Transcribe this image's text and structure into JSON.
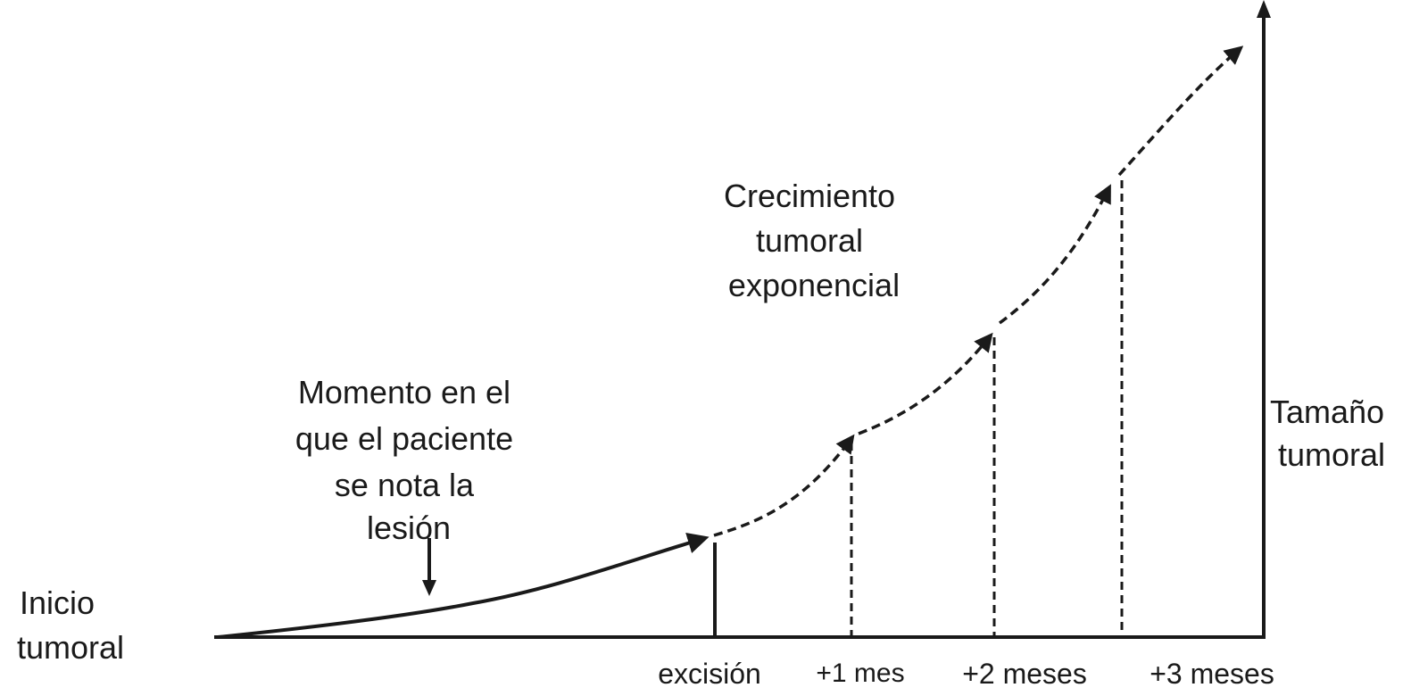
{
  "labels": {
    "inicio": [
      "Inicio",
      "tumoral"
    ],
    "momento": [
      "Momento en el",
      "que el paciente",
      "se nota la",
      "lesión"
    ],
    "crecimiento": [
      "Crecimiento",
      "tumoral",
      "exponencial"
    ],
    "tamano": [
      "Tamaño",
      "tumoral"
    ]
  },
  "ticks": [
    "excisión",
    "+1 mes",
    "+2 meses",
    "+3 meses"
  ]
}
